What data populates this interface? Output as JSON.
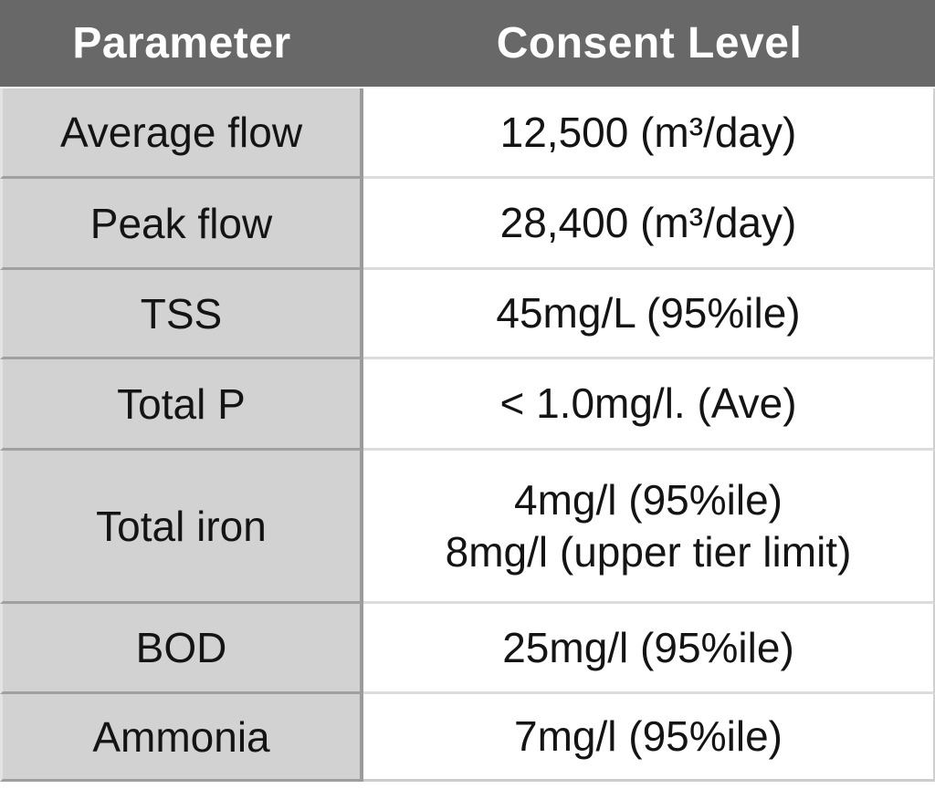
{
  "table": {
    "header": {
      "parameter": "Parameter",
      "consent_level": "Consent Level"
    },
    "rows": [
      {
        "parameter": "Average flow",
        "consent_level": "12,500 (m³/day)"
      },
      {
        "parameter": "Peak flow",
        "consent_level": "28,400 (m³/day)"
      },
      {
        "parameter": "TSS",
        "consent_level": "45mg/L (95%ile)"
      },
      {
        "parameter": "Total P",
        "consent_level": "< 1.0mg/l. (Ave)"
      },
      {
        "parameter": "Total iron",
        "consent_level": "4mg/l (95%ile)\n8mg/l (upper tier limit)"
      },
      {
        "parameter": "BOD",
        "consent_level": "25mg/l (95%ile)"
      },
      {
        "parameter": "Ammonia",
        "consent_level": "7mg/l (95%ile)"
      }
    ],
    "colors": {
      "header_bg": "#686868",
      "header_text": "#ffffff",
      "parameter_col_bg": "#d2d2d2",
      "consent_col_bg": "#ffffff",
      "body_text": "#141414",
      "column_divider": "#9b9b9b",
      "row_divider_gray_col": "#a0a0a0",
      "row_divider_white_col": "#dcdcdc"
    }
  },
  "chart_data": {
    "type": "table",
    "title": "",
    "columns": [
      "Parameter",
      "Consent Level"
    ],
    "rows": [
      [
        "Average flow",
        "12,500 (m³/day)"
      ],
      [
        "Peak flow",
        "28,400 (m³/day)"
      ],
      [
        "TSS",
        "45mg/L (95%ile)"
      ],
      [
        "Total P",
        "< 1.0mg/l. (Ave)"
      ],
      [
        "Total iron",
        "4mg/l (95%ile); 8mg/l (upper tier limit)"
      ],
      [
        "BOD",
        "25mg/l (95%ile)"
      ],
      [
        "Ammonia",
        "7mg/l (95%ile)"
      ]
    ]
  }
}
